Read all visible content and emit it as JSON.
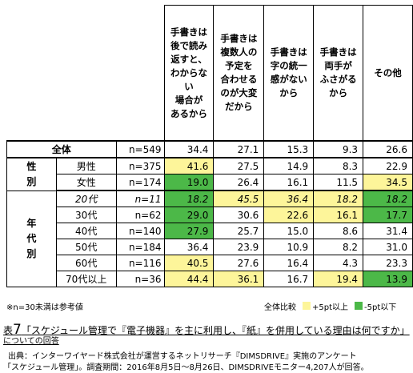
{
  "chart_data": {
    "type": "table",
    "columns": [
      "手書きは\n後で読み\n返すと、\nわからない\n場合が\nあるから",
      "手書きは\n複数人の\n予定を\n合わせる\nのが大変\nだから",
      "手書きは\n字の統一\n感がない\nから",
      "手書きは\n両手が\nふさがる\nから",
      "その他"
    ],
    "rows": [
      {
        "group": "全体",
        "label": "",
        "n": "n=549",
        "values": [
          "34.4",
          "27.1",
          "15.3",
          "9.3",
          "26.6"
        ],
        "marks": [
          "",
          "",
          "",
          "",
          ""
        ],
        "italic": false
      },
      {
        "group": "性\n別",
        "label": "男性",
        "n": "n=375",
        "values": [
          "41.6",
          "27.5",
          "14.9",
          "8.3",
          "22.9"
        ],
        "marks": [
          "hi",
          "",
          "",
          "",
          ""
        ],
        "italic": false
      },
      {
        "group": "",
        "label": "女性",
        "n": "n=174",
        "values": [
          "19.0",
          "26.4",
          "16.1",
          "11.5",
          "34.5"
        ],
        "marks": [
          "lo",
          "",
          "",
          "",
          "hi"
        ],
        "italic": false
      },
      {
        "group": "年\n代\n別",
        "label": "20代",
        "n": "n=11",
        "values": [
          "18.2",
          "45.5",
          "36.4",
          "18.2",
          "18.2"
        ],
        "marks": [
          "lo",
          "hi",
          "hi",
          "hi",
          "lo"
        ],
        "italic": true
      },
      {
        "group": "",
        "label": "30代",
        "n": "n=62",
        "values": [
          "29.0",
          "30.6",
          "22.6",
          "16.1",
          "17.7"
        ],
        "marks": [
          "lo",
          "",
          "hi",
          "hi",
          "lo"
        ],
        "italic": false
      },
      {
        "group": "",
        "label": "40代",
        "n": "n=140",
        "values": [
          "27.9",
          "25.7",
          "15.0",
          "8.6",
          "31.4"
        ],
        "marks": [
          "lo",
          "",
          "",
          "",
          ""
        ],
        "italic": false
      },
      {
        "group": "",
        "label": "50代",
        "n": "n=184",
        "values": [
          "36.4",
          "23.9",
          "10.9",
          "8.2",
          "31.0"
        ],
        "marks": [
          "",
          "",
          "",
          "",
          ""
        ],
        "italic": false
      },
      {
        "group": "",
        "label": "60代",
        "n": "n=116",
        "values": [
          "40.5",
          "27.6",
          "16.4",
          "4.3",
          "23.3"
        ],
        "marks": [
          "hi",
          "",
          "",
          "",
          ""
        ],
        "italic": false
      },
      {
        "group": "",
        "label": "70代以上",
        "n": "n=36",
        "values": [
          "44.4",
          "36.1",
          "16.7",
          "19.4",
          "13.9"
        ],
        "marks": [
          "hi",
          "hi",
          "",
          "hi",
          "lo"
        ],
        "italic": false
      }
    ],
    "note": "※n=30未満は参考値",
    "legend": [
      {
        "label": "全体比較",
        "color": ""
      },
      {
        "label": "+5pt以上",
        "color": "#fdf59a"
      },
      {
        "label": "-5pt以下",
        "color": "#4cb848"
      }
    ]
  },
  "caption": {
    "prefix": "表",
    "number": "7",
    "text": "「スケジュール管理で『電子機器』を主に利用し、『紙』を併用している理由は何ですか」",
    "text2": "についての回答"
  },
  "source": {
    "line1": "出典：インターワイヤード株式会社が運営するネットリサーチ『DIMSDRIVE』実施のアンケート",
    "line2": "「スケジュール管理」。調査期間：2016年8月5日～8月26日、DIMSDRIVEモニター4,207人が回答。"
  }
}
